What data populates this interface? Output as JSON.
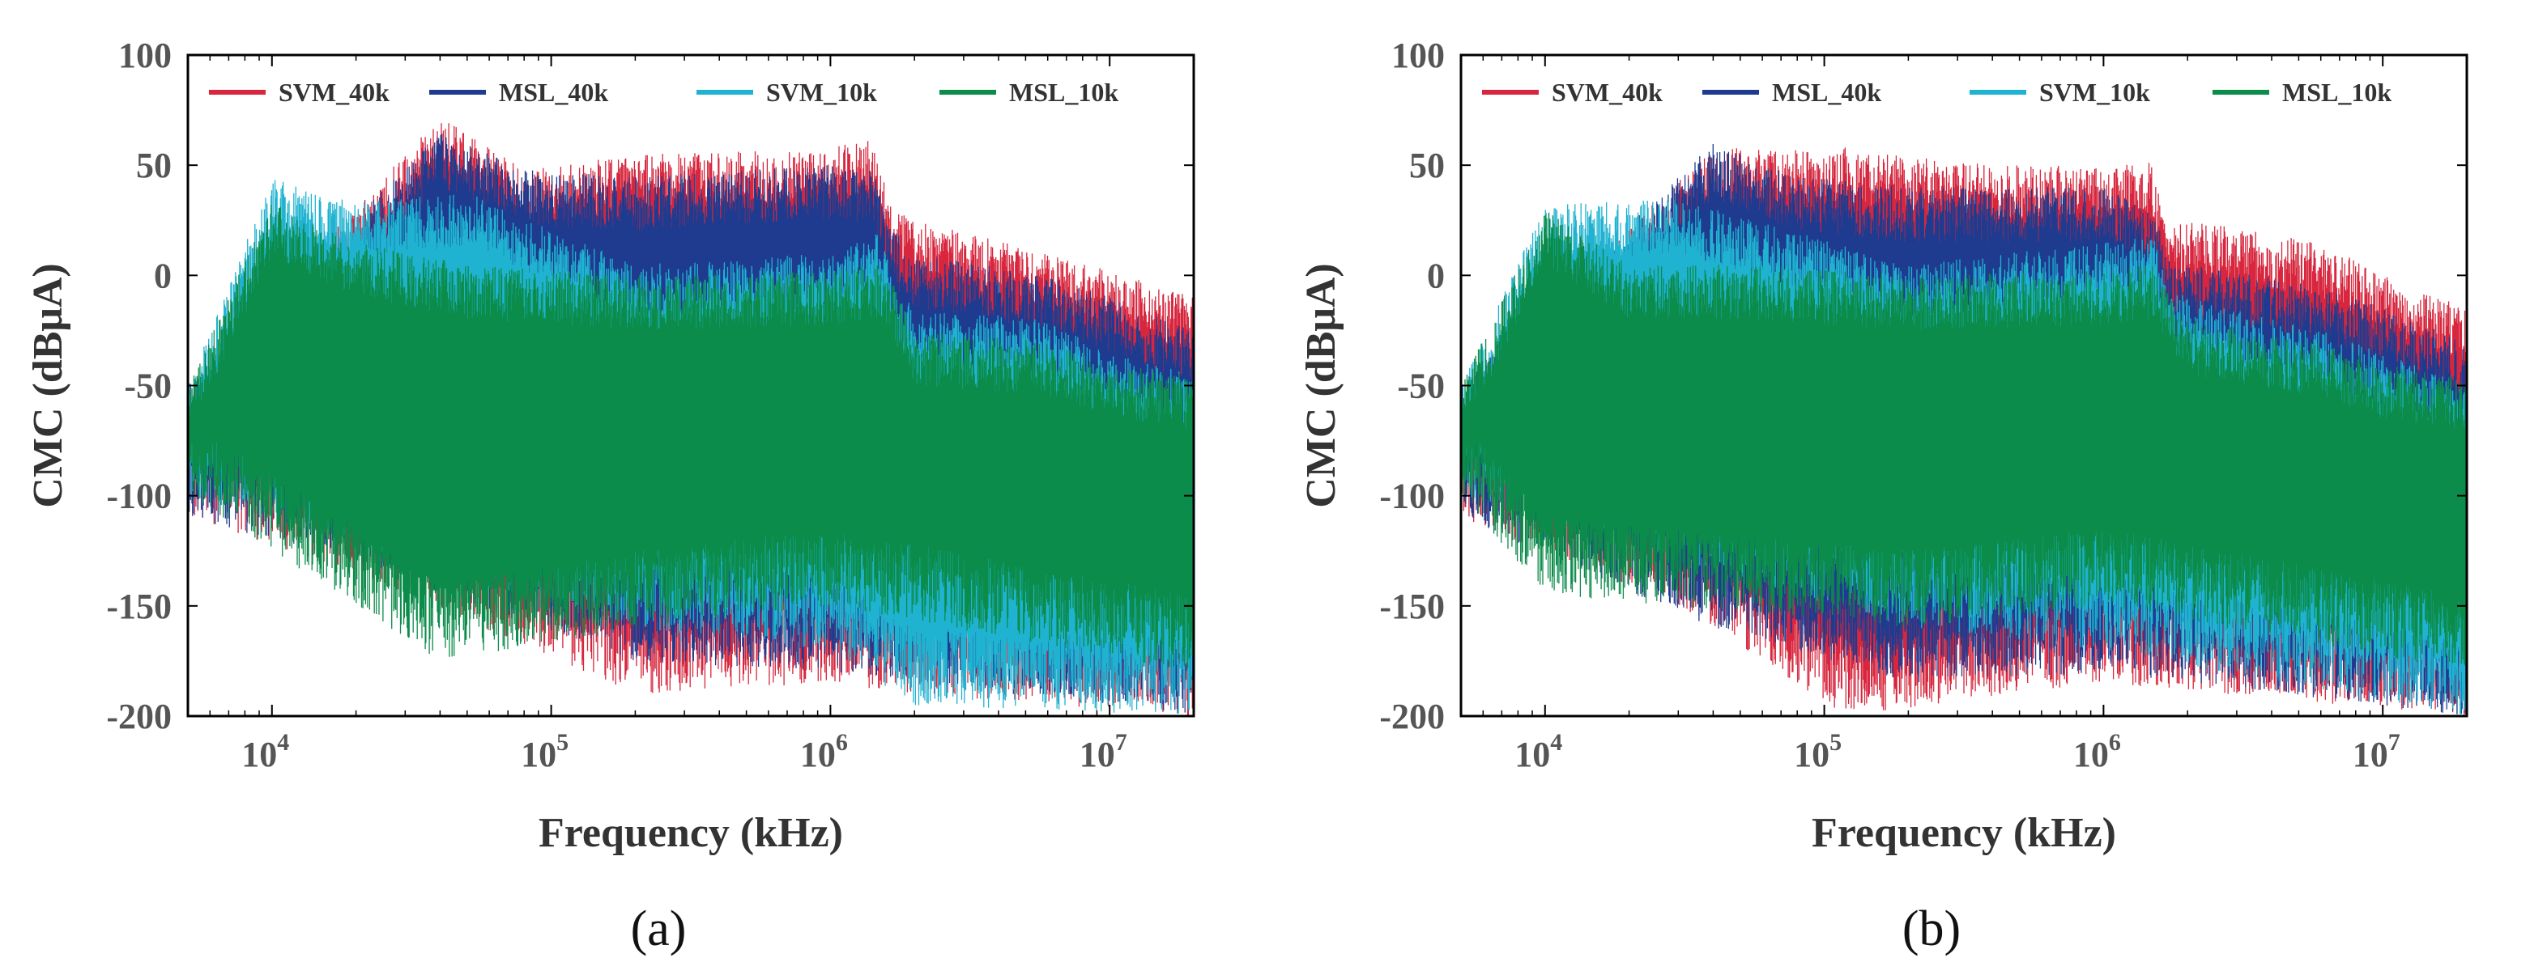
{
  "chart_data": [
    {
      "type": "line",
      "panel": "(a)",
      "xlabel": "Frequency (kHz)",
      "ylabel": "CMC (dBμA)",
      "xscale": "log",
      "xlim": [
        5000,
        20000000
      ],
      "ylim": [
        -200,
        100
      ],
      "yticks": [
        "100",
        "50",
        "0",
        "-50",
        "-100",
        "-150",
        "-200"
      ],
      "xticks": [
        {
          "base": "10",
          "exp": "4"
        },
        {
          "base": "10",
          "exp": "5"
        },
        {
          "base": "10",
          "exp": "6"
        },
        {
          "base": "10",
          "exp": "7"
        }
      ],
      "legend": [
        "SVM_40k",
        "MSL_40k",
        "SVM_10k",
        "MSL_10k"
      ],
      "legend_position": "top",
      "series": [
        {
          "name": "SVM_40k",
          "color": "#d7263d",
          "envelope": [
            [
              5000,
              -50
            ],
            [
              40000,
              72
            ],
            [
              80000,
              48
            ],
            [
              200000,
              55
            ],
            [
              1000000,
              58
            ],
            [
              1400000,
              62
            ],
            [
              1700000,
              30
            ],
            [
              2000000,
              25
            ],
            [
              6000000,
              10
            ],
            [
              10000000,
              2
            ],
            [
              20000000,
              -10
            ]
          ],
          "floor": [
            [
              5000,
              -110
            ],
            [
              20000,
              -135
            ],
            [
              200000,
              -190
            ],
            [
              1000000,
              -185
            ],
            [
              2000000,
              -190
            ],
            [
              20000000,
              -200
            ]
          ]
        },
        {
          "name": "MSL_40k",
          "color": "#1f3b8f",
          "envelope": [
            [
              5000,
              -50
            ],
            [
              40000,
              65
            ],
            [
              80000,
              48
            ],
            [
              200000,
              45
            ],
            [
              1000000,
              50
            ],
            [
              1400000,
              48
            ],
            [
              1700000,
              20
            ],
            [
              2000000,
              10
            ],
            [
              6000000,
              0
            ],
            [
              10000000,
              -10
            ],
            [
              20000000,
              -25
            ]
          ],
          "floor": [
            [
              5000,
              -110
            ],
            [
              20000,
              -130
            ],
            [
              200000,
              -175
            ],
            [
              1000000,
              -180
            ],
            [
              20000000,
              -200
            ]
          ]
        },
        {
          "name": "SVM_10k",
          "color": "#1fb3d1",
          "envelope": [
            [
              5000,
              -50
            ],
            [
              10000,
              44
            ],
            [
              20000,
              33
            ],
            [
              50000,
              38
            ],
            [
              200000,
              5
            ],
            [
              1000000,
              10
            ],
            [
              1500000,
              20
            ],
            [
              1700000,
              -5
            ],
            [
              2000000,
              -15
            ],
            [
              6000000,
              -20
            ],
            [
              10000000,
              -35
            ],
            [
              20000000,
              -45
            ]
          ],
          "floor": [
            [
              5000,
              -100
            ],
            [
              200000,
              -160
            ],
            [
              1000000,
              -170
            ],
            [
              2000000,
              -195
            ],
            [
              20000000,
              -200
            ]
          ]
        },
        {
          "name": "MSL_10k",
          "color": "#0c8c4a",
          "envelope": [
            [
              5000,
              -50
            ],
            [
              10000,
              33
            ],
            [
              20000,
              15
            ],
            [
              50000,
              5
            ],
            [
              200000,
              0
            ],
            [
              1000000,
              2
            ],
            [
              1500000,
              5
            ],
            [
              1700000,
              -5
            ],
            [
              2000000,
              -25
            ],
            [
              6000000,
              -30
            ],
            [
              10000000,
              -40
            ],
            [
              20000000,
              -45
            ]
          ],
          "floor": [
            [
              5000,
              -100
            ],
            [
              40000,
              -175
            ],
            [
              200000,
              -160
            ],
            [
              1000000,
              -150
            ],
            [
              20000000,
              -180
            ]
          ]
        }
      ]
    },
    {
      "type": "line",
      "panel": "(b)",
      "xlabel": "Frequency (kHz)",
      "ylabel": "CMC (dBμA)",
      "xscale": "log",
      "xlim": [
        5000,
        20000000
      ],
      "ylim": [
        -200,
        100
      ],
      "yticks": [
        "100",
        "50",
        "0",
        "-50",
        "-100",
        "-150",
        "-200"
      ],
      "xticks": [
        {
          "base": "10",
          "exp": "4"
        },
        {
          "base": "10",
          "exp": "5"
        },
        {
          "base": "10",
          "exp": "6"
        },
        {
          "base": "10",
          "exp": "7"
        }
      ],
      "legend": [
        "SVM_40k",
        "MSL_40k",
        "SVM_10k",
        "MSL_10k"
      ],
      "legend_position": "top",
      "series": [
        {
          "name": "SVM_40k",
          "color": "#d7263d",
          "envelope": [
            [
              5000,
              -50
            ],
            [
              40000,
              58
            ],
            [
              120000,
              58
            ],
            [
              400000,
              50
            ],
            [
              1000000,
              50
            ],
            [
              1500000,
              52
            ],
            [
              1700000,
              20
            ],
            [
              2000000,
              25
            ],
            [
              6000000,
              15
            ],
            [
              10000000,
              0
            ],
            [
              20000000,
              -15
            ]
          ],
          "floor": [
            [
              5000,
              -110
            ],
            [
              30000,
              -150
            ],
            [
              120000,
              -200
            ],
            [
              1000000,
              -185
            ],
            [
              20000000,
              -200
            ]
          ]
        },
        {
          "name": "MSL_40k",
          "color": "#1f3b8f",
          "envelope": [
            [
              5000,
              -50
            ],
            [
              40000,
              60
            ],
            [
              80000,
              45
            ],
            [
              200000,
              40
            ],
            [
              1000000,
              40
            ],
            [
              1500000,
              30
            ],
            [
              1700000,
              10
            ],
            [
              2000000,
              5
            ],
            [
              6000000,
              -5
            ],
            [
              10000000,
              -15
            ],
            [
              20000000,
              -30
            ]
          ],
          "floor": [
            [
              5000,
              -110
            ],
            [
              40000,
              -160
            ],
            [
              200000,
              -185
            ],
            [
              1000000,
              -180
            ],
            [
              20000000,
              -200
            ]
          ]
        },
        {
          "name": "SVM_10k",
          "color": "#1fb3d1",
          "envelope": [
            [
              5000,
              -50
            ],
            [
              10000,
              32
            ],
            [
              30000,
              35
            ],
            [
              200000,
              5
            ],
            [
              1000000,
              15
            ],
            [
              1500000,
              20
            ],
            [
              1700000,
              -5
            ],
            [
              2000000,
              -10
            ],
            [
              6000000,
              -25
            ],
            [
              10000000,
              -35
            ],
            [
              20000000,
              -50
            ]
          ],
          "floor": [
            [
              5000,
              -100
            ],
            [
              200000,
              -160
            ],
            [
              1000000,
              -170
            ],
            [
              20000000,
              -200
            ]
          ]
        },
        {
          "name": "MSL_10k",
          "color": "#0c8c4a",
          "envelope": [
            [
              5000,
              -50
            ],
            [
              10000,
              30
            ],
            [
              20000,
              5
            ],
            [
              50000,
              5
            ],
            [
              200000,
              0
            ],
            [
              1000000,
              2
            ],
            [
              1500000,
              5
            ],
            [
              1700000,
              -5
            ],
            [
              2000000,
              -20
            ],
            [
              6000000,
              -30
            ],
            [
              10000000,
              -40
            ],
            [
              20000000,
              -45
            ]
          ],
          "floor": [
            [
              5000,
              -100
            ],
            [
              10000,
              -145
            ],
            [
              200000,
              -160
            ],
            [
              1000000,
              -150
            ],
            [
              20000000,
              -180
            ]
          ]
        }
      ]
    }
  ]
}
